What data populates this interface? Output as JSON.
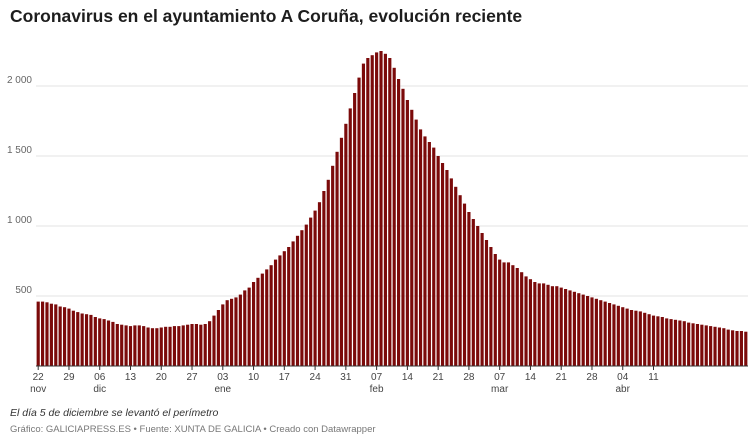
{
  "title": "Coronavirus en el ayuntamiento A Coruña, evolución reciente",
  "note": "El día 5 de diciembre se levantó el perímetro",
  "footer": {
    "prefix": "Gráfico: GALICIAPRESS.ES",
    "sep1": " • ",
    "source": "Fuente: XUNTA DE GALICIA",
    "sep2": " • ",
    "credit": "Creado con Datawrapper"
  },
  "colors": {
    "bar": "#7b0a0a",
    "grid": "#e3e3e3",
    "axis": "#333333"
  },
  "chart_data": {
    "type": "bar",
    "ylim": [
      0,
      2300
    ],
    "yticks": [
      500,
      1000,
      1500,
      2000
    ],
    "ytick_labels": [
      "500",
      "1 000",
      "1 500",
      "2 000"
    ],
    "xticks": [
      {
        "index": 0,
        "label": "22",
        "sub": "nov"
      },
      {
        "index": 7,
        "label": "29",
        "sub": ""
      },
      {
        "index": 14,
        "label": "06",
        "sub": "dic"
      },
      {
        "index": 21,
        "label": "13",
        "sub": ""
      },
      {
        "index": 28,
        "label": "20",
        "sub": ""
      },
      {
        "index": 35,
        "label": "27",
        "sub": ""
      },
      {
        "index": 42,
        "label": "03",
        "sub": "ene"
      },
      {
        "index": 49,
        "label": "10",
        "sub": ""
      },
      {
        "index": 56,
        "label": "17",
        "sub": ""
      },
      {
        "index": 63,
        "label": "24",
        "sub": ""
      },
      {
        "index": 70,
        "label": "31",
        "sub": ""
      },
      {
        "index": 77,
        "label": "07",
        "sub": "feb"
      },
      {
        "index": 84,
        "label": "14",
        "sub": ""
      },
      {
        "index": 91,
        "label": "21",
        "sub": ""
      },
      {
        "index": 98,
        "label": "28",
        "sub": ""
      },
      {
        "index": 105,
        "label": "07",
        "sub": "mar"
      },
      {
        "index": 112,
        "label": "14",
        "sub": ""
      },
      {
        "index": 119,
        "label": "21",
        "sub": ""
      },
      {
        "index": 126,
        "label": "28",
        "sub": ""
      },
      {
        "index": 133,
        "label": "04",
        "sub": "abr"
      },
      {
        "index": 140,
        "label": "11",
        "sub": ""
      }
    ],
    "values": [
      460,
      460,
      455,
      445,
      440,
      425,
      420,
      410,
      395,
      385,
      375,
      370,
      365,
      350,
      340,
      335,
      325,
      315,
      300,
      295,
      290,
      285,
      290,
      290,
      285,
      275,
      270,
      270,
      275,
      280,
      280,
      285,
      285,
      290,
      295,
      300,
      300,
      295,
      300,
      320,
      360,
      400,
      440,
      470,
      480,
      490,
      510,
      540,
      560,
      600,
      630,
      660,
      690,
      720,
      760,
      790,
      820,
      850,
      890,
      930,
      970,
      1010,
      1060,
      1110,
      1170,
      1250,
      1330,
      1430,
      1530,
      1630,
      1730,
      1840,
      1950,
      2060,
      2160,
      2200,
      2220,
      2240,
      2250,
      2230,
      2200,
      2130,
      2050,
      1980,
      1900,
      1830,
      1760,
      1690,
      1640,
      1600,
      1560,
      1500,
      1450,
      1400,
      1340,
      1280,
      1220,
      1160,
      1100,
      1050,
      1000,
      950,
      900,
      850,
      800,
      760,
      740,
      740,
      720,
      700,
      670,
      640,
      620,
      600,
      590,
      590,
      580,
      570,
      570,
      560,
      550,
      540,
      530,
      520,
      510,
      500,
      490,
      480,
      470,
      460,
      450,
      440,
      430,
      420,
      410,
      400,
      395,
      390,
      380,
      370,
      360,
      355,
      350,
      340,
      335,
      330,
      325,
      320,
      310,
      305,
      300,
      295,
      290,
      285,
      280,
      275,
      270,
      260,
      255,
      250,
      250,
      245
    ]
  }
}
